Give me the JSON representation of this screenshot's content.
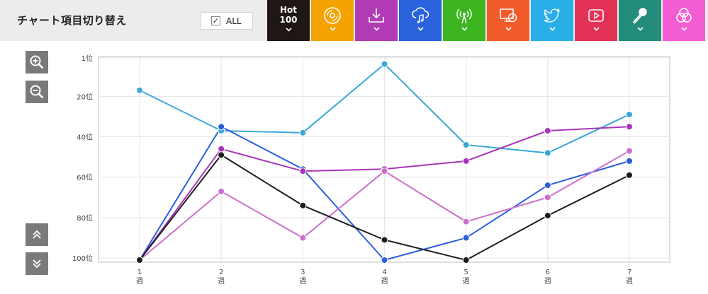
{
  "header": {
    "title": "チャート項目切り替え",
    "all_label": "ALL",
    "hot_line1": "Hot",
    "hot_line2": "100"
  },
  "tabs": [
    {
      "name": "hot100",
      "color": "#1f1716",
      "icon": "text"
    },
    {
      "name": "cd-sales",
      "color": "#f5a300",
      "icon": "disc-icon"
    },
    {
      "name": "downloads",
      "color": "#b13bb5",
      "icon": "download-icon"
    },
    {
      "name": "streaming",
      "color": "#2a63dc",
      "icon": "cloud-music-icon"
    },
    {
      "name": "radio",
      "color": "#3cb521",
      "icon": "radio-icon"
    },
    {
      "name": "video-views",
      "color": "#f25c2a",
      "icon": "monitor-disc-icon"
    },
    {
      "name": "twitter",
      "color": "#29aee7",
      "icon": "twitter-bird-icon"
    },
    {
      "name": "youtube",
      "color": "#e23357",
      "icon": "play-icon"
    },
    {
      "name": "karaoke",
      "color": "#238c7a",
      "icon": "microphone-icon"
    },
    {
      "name": "lookups",
      "color": "#f45ed4",
      "icon": "circles-icon"
    }
  ],
  "controls": {
    "zoom_in": "zoom-in-icon",
    "zoom_out": "zoom-out-icon",
    "scroll_up": "double-chevron-up-icon",
    "scroll_down": "double-chevron-down-icon"
  },
  "chart_data": {
    "type": "line",
    "title": "",
    "xlabel": "",
    "ylabel": "",
    "x": [
      1,
      2,
      3,
      4,
      5,
      6,
      7
    ],
    "categories": [
      "1\n週",
      "2\n週",
      "3\n週",
      "4\n週",
      "5\n週",
      "6\n週",
      "7\n週"
    ],
    "x_tick_numbers": [
      "1",
      "2",
      "3",
      "4",
      "5",
      "6",
      "7"
    ],
    "x_tick_unit": "週",
    "y_ticks": [
      1,
      20,
      40,
      60,
      80,
      100
    ],
    "y_tick_labels": [
      "1位",
      "20位",
      "40位",
      "60位",
      "80位",
      "100位"
    ],
    "ylim": [
      1,
      101
    ],
    "y_inverted": true,
    "grid": true,
    "series": [
      {
        "name": "twitter",
        "color": "#3aa8d8",
        "values": [
          17,
          37,
          38,
          4,
          44,
          48,
          29
        ]
      },
      {
        "name": "streaming",
        "color": "#2b5fdb",
        "values": [
          101,
          35,
          56,
          101,
          90,
          64,
          52
        ]
      },
      {
        "name": "downloads",
        "color": "#a836b8",
        "values": [
          101,
          46,
          57,
          56,
          52,
          37,
          35
        ]
      },
      {
        "name": "lookups",
        "color": "#cc6fcc",
        "values": [
          101,
          67,
          90,
          57,
          82,
          70,
          47
        ]
      },
      {
        "name": "hot100",
        "color": "#1e1e1e",
        "values": [
          101,
          49,
          74,
          91,
          101,
          79,
          59
        ]
      }
    ]
  }
}
